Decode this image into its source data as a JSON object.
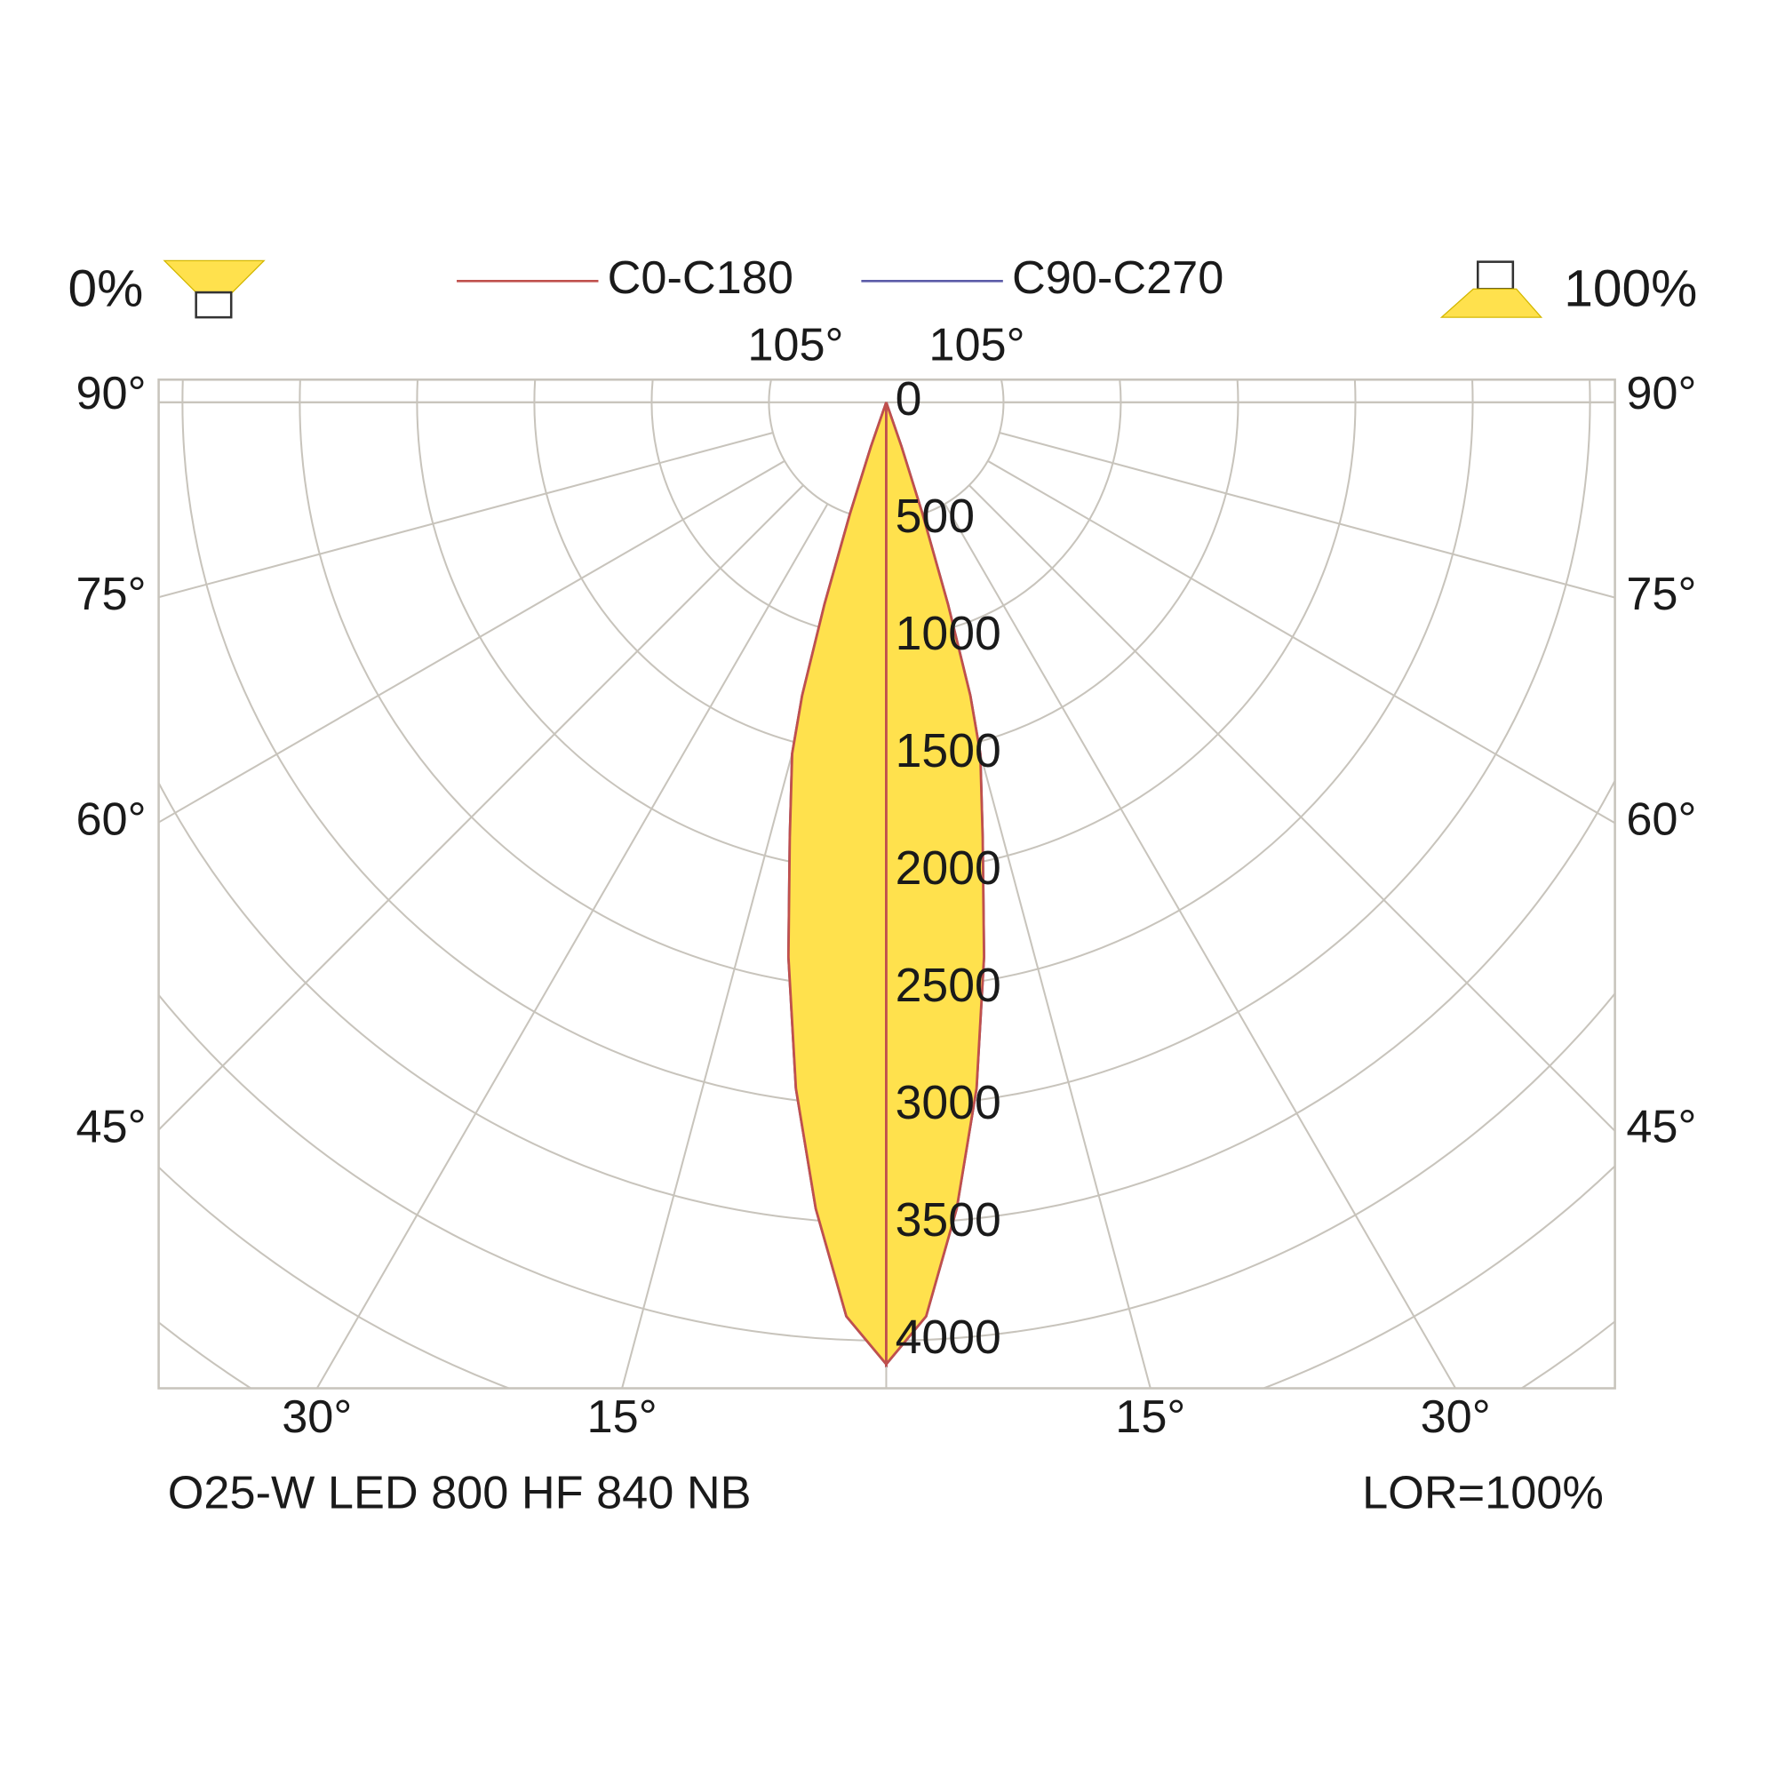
{
  "chart_data": {
    "type": "polar",
    "downward_label": "0%",
    "upward_label": "100%",
    "footer_left": "O25-W LED 800 HF 840 NB",
    "footer_right": "LOR=100%",
    "fill": "#ffe14d",
    "angles": [
      0,
      2.5,
      5,
      7.5,
      10,
      12.5,
      15,
      16,
      17,
      18,
      19,
      20
    ],
    "series": [
      {
        "name": "C90-C270",
        "color": "#5b5ba8",
        "values": [
          4100,
          3900,
          3450,
          2950,
          2400,
          1900,
          1550,
          1300,
          900,
          500,
          200,
          0
        ]
      },
      {
        "name": "C0-C180",
        "color": "#c0504d",
        "values": [
          4100,
          3900,
          3450,
          2950,
          2400,
          1900,
          1550,
          1300,
          900,
          500,
          200,
          0
        ]
      }
    ],
    "rticks": [
      0,
      500,
      1000,
      1500,
      2000,
      2500,
      3000,
      3500,
      4000
    ],
    "angle_ticks": [
      {
        "value": 105,
        "label": "105°"
      },
      {
        "value": 90,
        "label": "90°"
      },
      {
        "value": 75,
        "label": "75°"
      },
      {
        "value": 60,
        "label": "60°"
      },
      {
        "value": 45,
        "label": "45°"
      },
      {
        "value": 30,
        "label": "30°"
      },
      {
        "value": 15,
        "label": "15°"
      }
    ]
  }
}
